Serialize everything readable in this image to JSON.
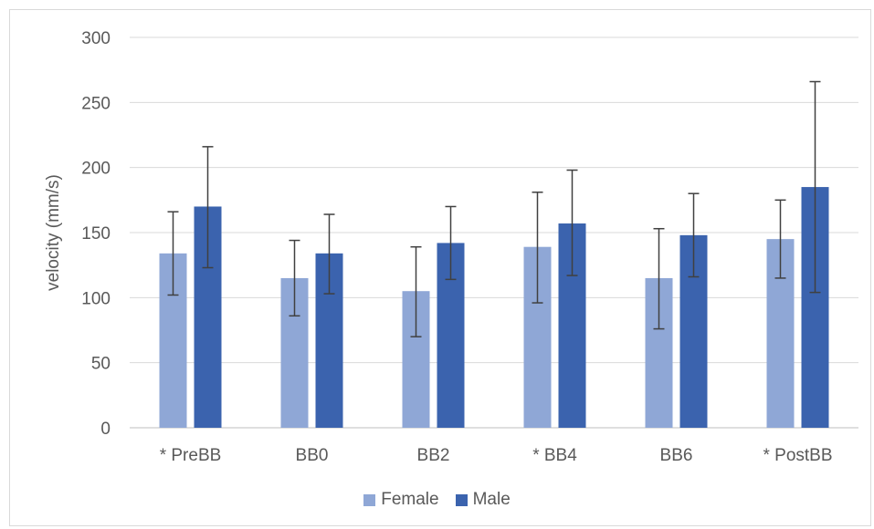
{
  "chart_data": {
    "type": "bar",
    "title": "",
    "xlabel": "",
    "ylabel": "velocity (mm/s)",
    "ylim": [
      0,
      300
    ],
    "yticks": [
      0,
      50,
      100,
      150,
      200,
      250,
      300
    ],
    "grid": true,
    "legend_position": "bottom",
    "categories": [
      "* PreBB",
      "BB0",
      "BB2",
      "* BB4",
      "BB6",
      "* PostBB"
    ],
    "series": [
      {
        "name": "Female",
        "color": "#8fa7d6",
        "values": [
          134,
          115,
          105,
          139,
          115,
          145
        ],
        "error_low": [
          102,
          86,
          70,
          96,
          76,
          115
        ],
        "error_high": [
          166,
          144,
          139,
          181,
          153,
          175
        ]
      },
      {
        "name": "Male",
        "color": "#3b63ae",
        "values": [
          170,
          134,
          142,
          157,
          148,
          185
        ],
        "error_low": [
          123,
          103,
          114,
          117,
          116,
          104
        ],
        "error_high": [
          216,
          164,
          170,
          198,
          180,
          266
        ]
      }
    ]
  }
}
